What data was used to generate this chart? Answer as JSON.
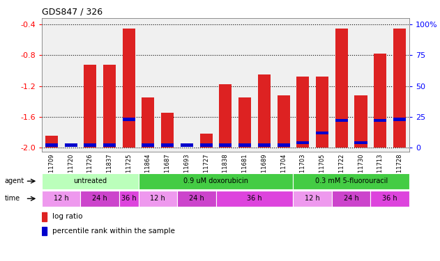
{
  "title": "GDS847 / 326",
  "samples": [
    "GSM11709",
    "GSM11720",
    "GSM11726",
    "GSM11837",
    "GSM11725",
    "GSM11864",
    "GSM11687",
    "GSM11693",
    "GSM11727",
    "GSM11838",
    "GSM11681",
    "GSM11689",
    "GSM11704",
    "GSM11703",
    "GSM11705",
    "GSM11722",
    "GSM11730",
    "GSM11713",
    "GSM11728"
  ],
  "log_ratio": [
    -1.85,
    -2.0,
    -0.92,
    -0.92,
    -0.45,
    -1.35,
    -1.55,
    -2.0,
    -1.82,
    -1.18,
    -1.35,
    -1.05,
    -1.32,
    -1.08,
    -1.08,
    -0.45,
    -1.32,
    -0.78,
    -0.45
  ],
  "percentile_rank": [
    2,
    2,
    2,
    2,
    23,
    2,
    2,
    2,
    2,
    2,
    2,
    2,
    2,
    4,
    12,
    22,
    4,
    22,
    23
  ],
  "agents": [
    {
      "label": "untreated",
      "start": 0,
      "end": 5,
      "color": "#bbffbb"
    },
    {
      "label": "0.9 uM doxorubicin",
      "start": 5,
      "end": 13,
      "color": "#44cc44"
    },
    {
      "label": "0.3 mM 5-fluorouracil",
      "start": 13,
      "end": 19,
      "color": "#44cc44"
    }
  ],
  "time_groups": [
    {
      "label": "12 h",
      "start": 0,
      "end": 2,
      "color": "#ee99ee"
    },
    {
      "label": "24 h",
      "start": 2,
      "end": 4,
      "color": "#cc44cc"
    },
    {
      "label": "36 h",
      "start": 4,
      "end": 5,
      "color": "#dd44dd"
    },
    {
      "label": "12 h",
      "start": 5,
      "end": 7,
      "color": "#ee99ee"
    },
    {
      "label": "24 h",
      "start": 7,
      "end": 9,
      "color": "#cc44cc"
    },
    {
      "label": "36 h",
      "start": 9,
      "end": 13,
      "color": "#dd44dd"
    },
    {
      "label": "12 h",
      "start": 13,
      "end": 15,
      "color": "#ee99ee"
    },
    {
      "label": "24 h",
      "start": 15,
      "end": 17,
      "color": "#cc44cc"
    },
    {
      "label": "36 h",
      "start": 17,
      "end": 19,
      "color": "#dd44dd"
    }
  ],
  "ylim": [
    -2.05,
    -0.32
  ],
  "yticks": [
    -2.0,
    -1.6,
    -1.2,
    -0.8,
    -0.4
  ],
  "right_yticks": [
    0,
    25,
    50,
    75,
    100
  ],
  "bar_color": "#dd2222",
  "blue_color": "#0000cc",
  "bar_width": 0.65,
  "background_color": "#ffffff",
  "plot_bg_color": "#f0f0f0"
}
